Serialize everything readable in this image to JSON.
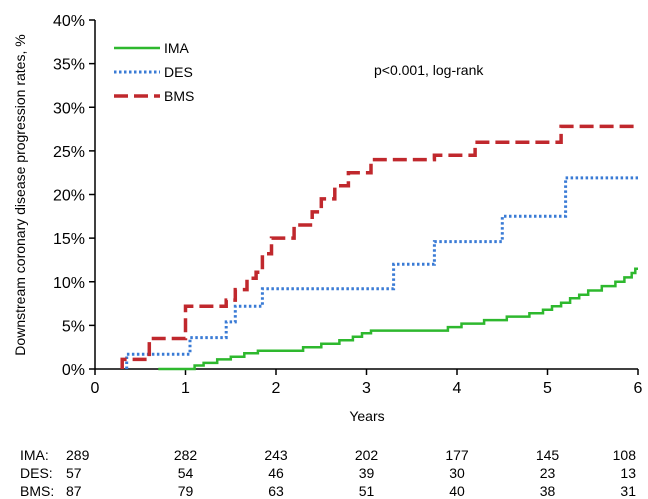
{
  "chart_data": {
    "type": "line",
    "title": "",
    "xlabel": "Years",
    "ylabel": "Downstream coronary disease progression rates, %",
    "xlim": [
      0,
      6
    ],
    "ylim": [
      0,
      40
    ],
    "x_ticks": [
      "0",
      "1",
      "2",
      "3",
      "4",
      "5",
      "6"
    ],
    "y_ticks": [
      "0%",
      "5%",
      "10%",
      "15%",
      "20%",
      "25%",
      "30%",
      "35%",
      "40%"
    ],
    "grid": false,
    "legend": {
      "placement": "top-left"
    },
    "annotation": "p<0.001, log-rank",
    "step": true,
    "series": [
      {
        "name": "IMA",
        "color": "#2eb82e",
        "style": "solid",
        "points": [
          [
            0.7,
            0
          ],
          [
            1.1,
            0
          ],
          [
            1.1,
            0.4
          ],
          [
            1.2,
            0.4
          ],
          [
            1.2,
            0.7
          ],
          [
            1.35,
            0.7
          ],
          [
            1.35,
            1.1
          ],
          [
            1.5,
            1.1
          ],
          [
            1.5,
            1.4
          ],
          [
            1.65,
            1.4
          ],
          [
            1.65,
            1.8
          ],
          [
            1.8,
            1.8
          ],
          [
            1.8,
            2.1
          ],
          [
            2.3,
            2.1
          ],
          [
            2.3,
            2.5
          ],
          [
            2.5,
            2.5
          ],
          [
            2.5,
            2.9
          ],
          [
            2.7,
            2.9
          ],
          [
            2.7,
            3.3
          ],
          [
            2.85,
            3.3
          ],
          [
            2.85,
            3.7
          ],
          [
            2.95,
            3.7
          ],
          [
            2.95,
            4.1
          ],
          [
            3.05,
            4.1
          ],
          [
            3.05,
            4.4
          ],
          [
            3.9,
            4.4
          ],
          [
            3.9,
            4.8
          ],
          [
            4.05,
            4.8
          ],
          [
            4.05,
            5.2
          ],
          [
            4.3,
            5.2
          ],
          [
            4.3,
            5.6
          ],
          [
            4.55,
            5.6
          ],
          [
            4.55,
            6.0
          ],
          [
            4.8,
            6.0
          ],
          [
            4.8,
            6.4
          ],
          [
            4.95,
            6.4
          ],
          [
            4.95,
            6.8
          ],
          [
            5.05,
            6.8
          ],
          [
            5.05,
            7.2
          ],
          [
            5.15,
            7.2
          ],
          [
            5.15,
            7.6
          ],
          [
            5.25,
            7.6
          ],
          [
            5.25,
            8.1
          ],
          [
            5.35,
            8.1
          ],
          [
            5.35,
            8.5
          ],
          [
            5.45,
            8.5
          ],
          [
            5.45,
            9.0
          ],
          [
            5.6,
            9.0
          ],
          [
            5.6,
            9.5
          ],
          [
            5.75,
            9.5
          ],
          [
            5.75,
            10.0
          ],
          [
            5.85,
            10.0
          ],
          [
            5.85,
            10.5
          ],
          [
            5.93,
            10.5
          ],
          [
            5.93,
            11.0
          ],
          [
            5.97,
            11.0
          ],
          [
            5.97,
            11.5
          ],
          [
            6.0,
            11.5
          ]
        ]
      },
      {
        "name": "DES",
        "color": "#3a7bd5",
        "style": "dotted",
        "points": [
          [
            0.35,
            0
          ],
          [
            0.35,
            1.7
          ],
          [
            1.05,
            1.7
          ],
          [
            1.05,
            3.6
          ],
          [
            1.45,
            3.6
          ],
          [
            1.45,
            5.4
          ],
          [
            1.55,
            5.4
          ],
          [
            1.55,
            7.2
          ],
          [
            1.85,
            7.2
          ],
          [
            1.85,
            9.2
          ],
          [
            3.3,
            9.2
          ],
          [
            3.3,
            12.0
          ],
          [
            3.75,
            12.0
          ],
          [
            3.75,
            14.6
          ],
          [
            4.5,
            14.6
          ],
          [
            4.5,
            17.5
          ],
          [
            5.2,
            17.5
          ],
          [
            5.2,
            21.9
          ],
          [
            6.0,
            21.9
          ]
        ]
      },
      {
        "name": "BMS",
        "color": "#c0282d",
        "style": "dashed",
        "points": [
          [
            0.3,
            0
          ],
          [
            0.3,
            1.1
          ],
          [
            0.6,
            1.1
          ],
          [
            0.6,
            3.5
          ],
          [
            1.0,
            3.5
          ],
          [
            1.0,
            7.2
          ],
          [
            1.45,
            7.2
          ],
          [
            1.45,
            7.9
          ],
          [
            1.55,
            7.9
          ],
          [
            1.55,
            9.1
          ],
          [
            1.68,
            9.1
          ],
          [
            1.68,
            10.4
          ],
          [
            1.78,
            10.4
          ],
          [
            1.78,
            11.1
          ],
          [
            1.85,
            11.1
          ],
          [
            1.85,
            13.2
          ],
          [
            1.95,
            13.2
          ],
          [
            1.95,
            15.0
          ],
          [
            2.2,
            15.0
          ],
          [
            2.2,
            16.5
          ],
          [
            2.4,
            16.5
          ],
          [
            2.4,
            18.0
          ],
          [
            2.5,
            18.0
          ],
          [
            2.5,
            19.5
          ],
          [
            2.65,
            19.5
          ],
          [
            2.65,
            21.0
          ],
          [
            2.8,
            21.0
          ],
          [
            2.8,
            22.5
          ],
          [
            3.05,
            22.5
          ],
          [
            3.05,
            24.0
          ],
          [
            3.75,
            24.0
          ],
          [
            3.75,
            24.5
          ],
          [
            4.2,
            24.5
          ],
          [
            4.2,
            26.0
          ],
          [
            5.15,
            26.0
          ],
          [
            5.15,
            27.8
          ],
          [
            6.0,
            27.8
          ]
        ]
      }
    ],
    "risk_table": {
      "x": [
        0,
        1,
        2,
        3,
        4,
        5,
        6
      ],
      "rows": [
        {
          "label": "IMA:",
          "values": [
            "289",
            "282",
            "243",
            "202",
            "177",
            "145",
            "108"
          ]
        },
        {
          "label": "DES:",
          "values": [
            "57",
            "54",
            "46",
            "39",
            "30",
            "23",
            "13"
          ]
        },
        {
          "label": "BMS:",
          "values": [
            "87",
            "79",
            "63",
            "51",
            "40",
            "38",
            "31"
          ]
        }
      ]
    }
  }
}
